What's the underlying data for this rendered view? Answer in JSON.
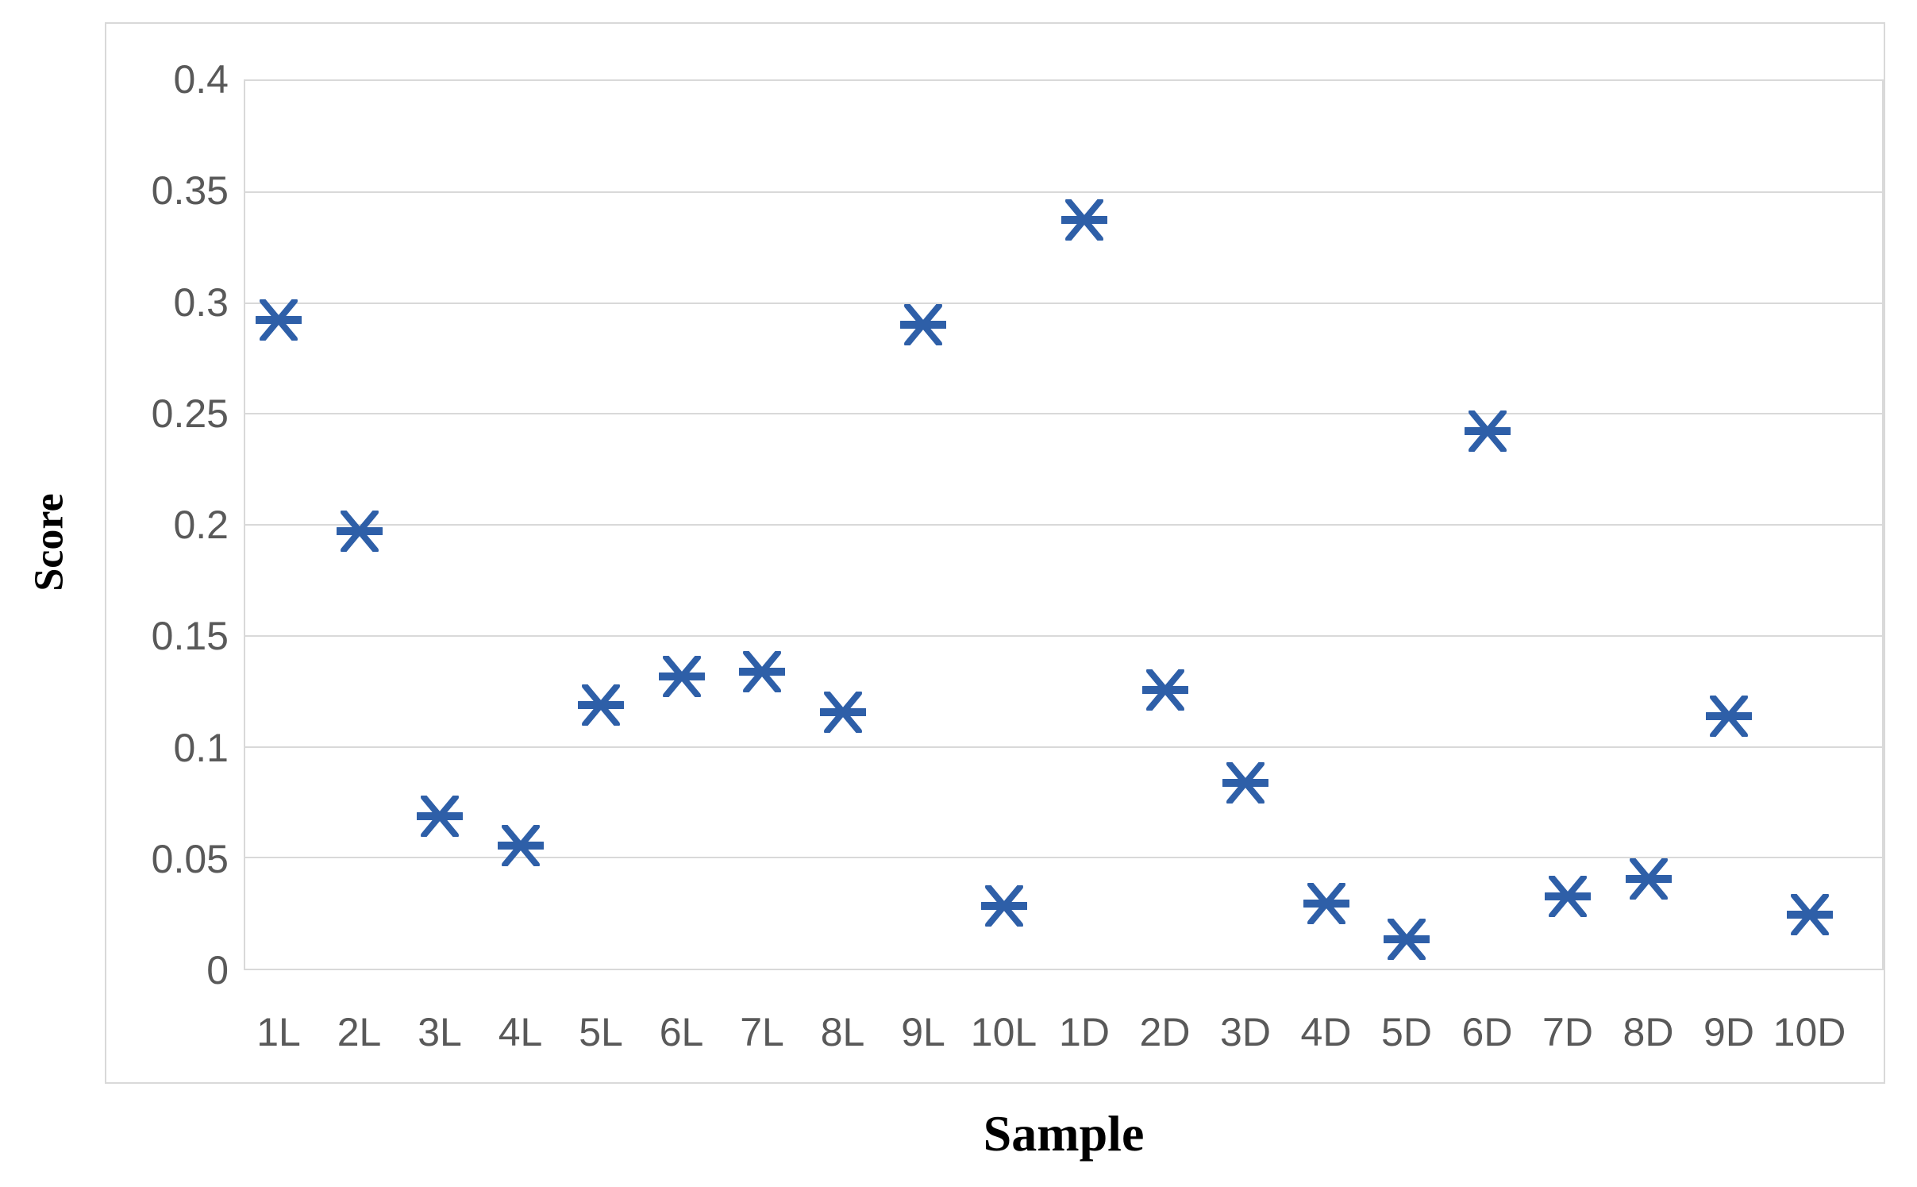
{
  "chart_data": {
    "type": "scatter",
    "title": "",
    "xlabel": "Sample",
    "ylabel": "Score",
    "categories": [
      "1L",
      "2L",
      "3L",
      "4L",
      "5L",
      "6L",
      "7L",
      "8L",
      "9L",
      "10L",
      "1D",
      "2D",
      "3D",
      "4D",
      "5D",
      "6D",
      "7D",
      "8D",
      "9D",
      "10D"
    ],
    "values": [
      0.292,
      0.197,
      0.069,
      0.056,
      0.119,
      0.132,
      0.134,
      0.116,
      0.29,
      0.029,
      0.337,
      0.126,
      0.084,
      0.03,
      0.014,
      0.242,
      0.033,
      0.041,
      0.114,
      0.025
    ],
    "ylim": [
      0,
      0.4
    ],
    "ytick_step": 0.05,
    "yticks": [
      "0.4",
      "0.35",
      "0.3",
      "0.25",
      "0.2",
      "0.15",
      "0.1",
      "0.05",
      "0"
    ],
    "grid": "horizontal-only",
    "legend_position": "none",
    "marker_style": "six-spoke-asterisk",
    "marker_color": "#2e5fa8",
    "gridline_color": "#d9d9d9",
    "frame_color": "#d9d9d9",
    "tick_label_color": "#595959",
    "axis_title_color": "#000000"
  }
}
